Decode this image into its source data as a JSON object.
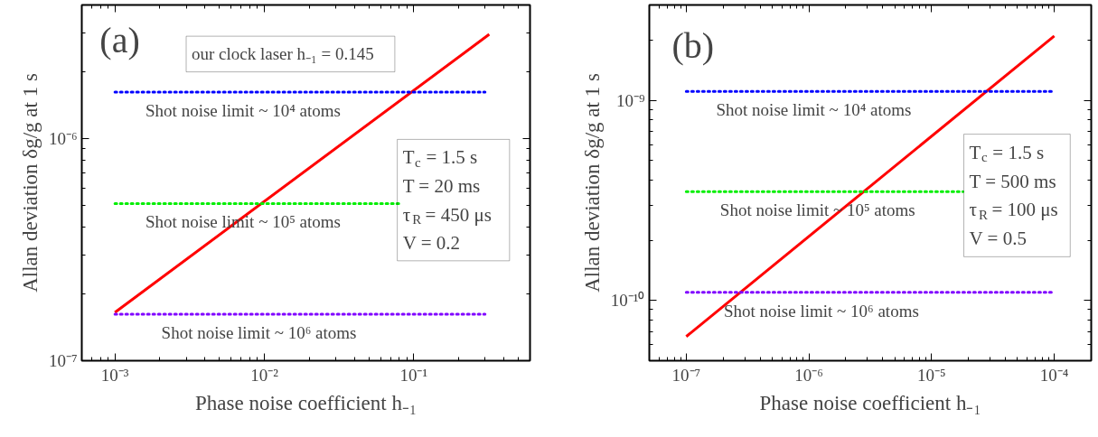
{
  "chart_data": [
    {
      "type": "line",
      "xlabel": "Phase noise coefficient h₋₁",
      "ylabel": "Allan deviation δg/g at 1 s",
      "log": "xy",
      "xlim": [
        0.0006,
        0.6
      ],
      "xticks": [
        {
          "value": 0.001,
          "label": "10⁻³"
        },
        {
          "value": 0.01,
          "label": "10⁻²"
        },
        {
          "value": 0.1,
          "label": "10⁻¹"
        }
      ],
      "ylim": [
        1e-07,
        4e-06
      ],
      "yticks": [
        {
          "value": 1e-07,
          "label": "10⁻⁷"
        },
        {
          "value": 1e-06,
          "label": "10⁻⁶"
        }
      ],
      "series": [
        {
          "color": "#ff0000",
          "x": [
            0.001,
            0.32
          ],
          "values": [
            1.65e-07,
            2.95e-06
          ]
        },
        {
          "color": "#0000ff",
          "line_style": "dotted",
          "x": [
            0.001,
            0.3
          ],
          "values": [
            1.62e-06,
            1.62e-06
          ]
        },
        {
          "color": "#00ee00",
          "line_style": "dotted",
          "x": [
            0.001,
            0.08
          ],
          "values": [
            5.1e-07,
            5.1e-07
          ]
        },
        {
          "color": "#8000ff",
          "line_style": "dotted",
          "x": [
            0.001,
            0.3
          ],
          "values": [
            1.62e-07,
            1.62e-07
          ]
        }
      ],
      "annotations": [
        "(a)",
        "our clock laser h₋₁ = 0.145",
        {
          "text": "Shot noise limit ~ 10⁴ atoms",
          "x": 0.0083,
          "y": 1.62e-06
        },
        {
          "text": "Shot noise limit ~ 10⁵ atoms",
          "x": 0.0083,
          "y": 5.1e-07
        },
        {
          "text": "Shot noise limit ~ 10⁶ atoms",
          "x": 0.0106,
          "y": 1.62e-07
        },
        "T$_{c}$ = 1.5 s",
        "T = 20 ms",
        "τ$_{R}$  = 450 μs",
        "V = 0.2"
      ]
    },
    {
      "type": "line",
      "xlabel": "Phase noise coefficient h₋₁",
      "ylabel": "Allan deviation δg/g at 1 s",
      "log": "xy",
      "xlim": [
        5e-08,
        0.0002
      ],
      "xticks": [
        {
          "value": 1e-07,
          "label": "10⁻⁷"
        },
        {
          "value": 1e-06,
          "label": "10⁻⁶"
        },
        {
          "value": 1e-05,
          "label": "10⁻⁵"
        },
        {
          "value": 0.0001,
          "label": "10⁻⁴"
        }
      ],
      "ylim": [
        5e-11,
        3e-09
      ],
      "yticks": [
        {
          "value": 1e-10,
          "label": "10⁻¹⁰"
        },
        {
          "value": 1e-09,
          "label": "10⁻⁹"
        }
      ],
      "series": [
        {
          "color": "#ff0000",
          "x": [
            1e-07,
            0.0001
          ],
          "values": [
            6.6e-11,
            2.1e-09
          ]
        },
        {
          "color": "#0000ff",
          "line_style": "dotted",
          "x": [
            1e-07,
            0.0001
          ],
          "values": [
            1.11e-09,
            1.11e-09
          ]
        },
        {
          "color": "#00ee00",
          "line_style": "dotted",
          "x": [
            1e-07,
            1.8e-05
          ],
          "values": [
            3.5e-10,
            3.5e-10
          ]
        },
        {
          "color": "#8000ff",
          "line_style": "dotted",
          "x": [
            1e-07,
            0.0001
          ],
          "values": [
            1.1e-10,
            1.1e-10
          ]
        }
      ],
      "annotations": [
        "(b)",
        {
          "text": "Shot noise limit ~ 10⁴ atoms",
          "x": 1.3e-06,
          "y": 1.11e-09
        },
        {
          "text": "Shot noise limit ~ 10⁵ atoms",
          "x": 1.4e-06,
          "y": 3.5e-10
        },
        {
          "text": "Shot noise limit ~ 10⁶ atoms",
          "x": 1.5e-06,
          "y": 1.1e-10
        },
        "T$_{c}$ = 1.5 s",
        "T  = 500 ms",
        "τ$_{R}$ = 100 μs",
        "V  = 0.5"
      ]
    }
  ]
}
